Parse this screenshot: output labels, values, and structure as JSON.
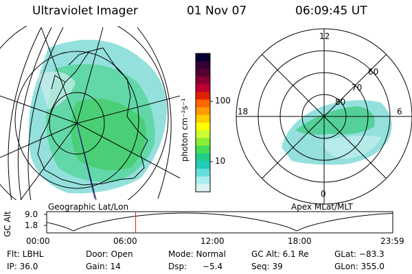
{
  "header": {
    "instrument": "Ultraviolet Imager",
    "date": "01 Nov 07",
    "time": "06:09:45 UT"
  },
  "left_panel": {
    "label": "Geographic Lat/Lon"
  },
  "right_panel": {
    "label": "Apex MLat/MLT",
    "mlt_labels": {
      "top": "12",
      "left": "18",
      "right": "6",
      "bottom": "0"
    },
    "lat_labels": [
      "60",
      "70",
      "80"
    ]
  },
  "colorbar": {
    "unit_label": "photon cm⁻²s⁻¹",
    "ticks": [
      "100",
      "10"
    ],
    "colors": [
      "#000033",
      "#330033",
      "#550033",
      "#880033",
      "#bb0033",
      "#dd2200",
      "#ff6600",
      "#ff9900",
      "#ffcc00",
      "#ffff00",
      "#ccff33",
      "#88ee33",
      "#44dd55",
      "#22cc88",
      "#22ccbb",
      "#66dddd",
      "#aaeeee",
      "#ddf2f2"
    ]
  },
  "timeline": {
    "axis_label": "GC Alt",
    "y_ticks": [
      "9.0",
      "1.8"
    ],
    "x_ticks": [
      "00:00",
      "06:00",
      "12:00",
      "18:00",
      "23:59"
    ],
    "current_time_fraction": 0.257
  },
  "info": {
    "filter": "Flt: LBHL",
    "door": "Door: Open",
    "mode": "Mode: Normal",
    "gc_alt": "GC Alt: 6.1 Re",
    "glat": "GLat: −83.3",
    "ip": "IP: 36.0",
    "gain": "Gain: 14",
    "dsp_label": "Dsp:",
    "dsp_value": "−5.4",
    "seq": "Seq: 39",
    "glon": "GLon: 355.0"
  }
}
